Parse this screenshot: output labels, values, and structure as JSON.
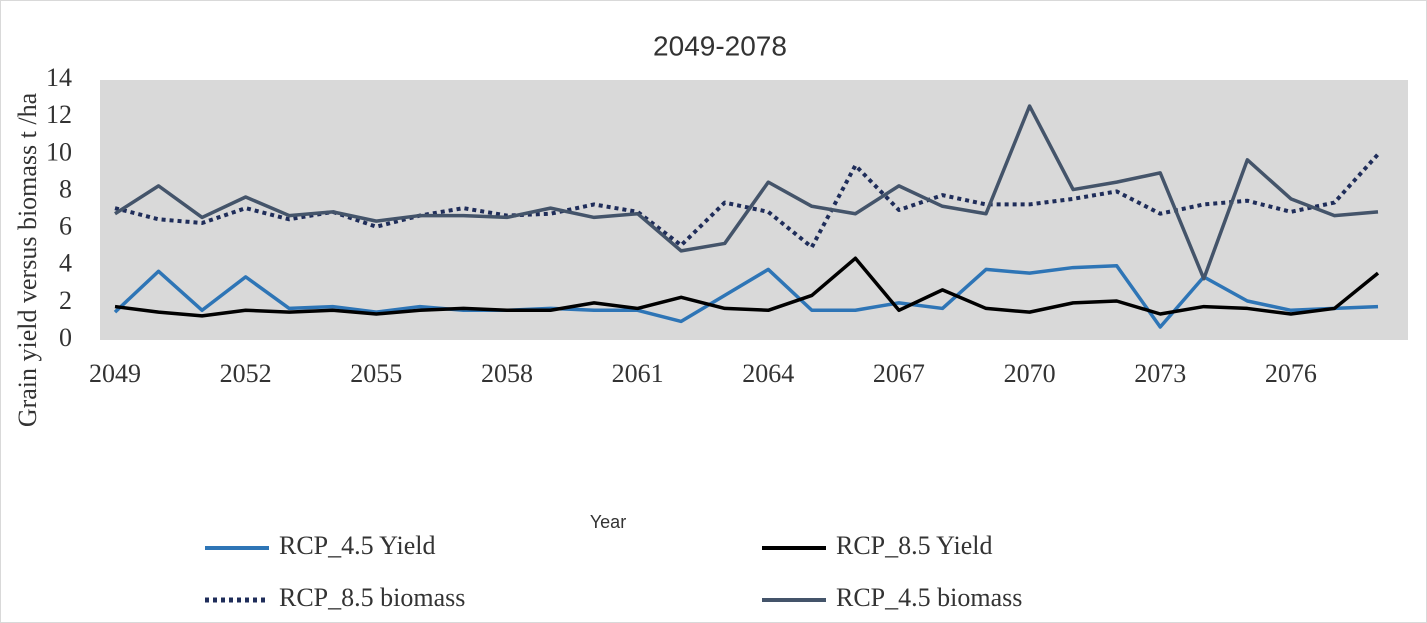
{
  "chart_data": {
    "type": "line",
    "title": "2049-2078",
    "xlabel": "Year",
    "ylabel": "Grain yield versus biomass t /ha",
    "x": [
      2049,
      2050,
      2051,
      2052,
      2053,
      2054,
      2055,
      2056,
      2057,
      2058,
      2059,
      2060,
      2061,
      2062,
      2063,
      2064,
      2065,
      2066,
      2067,
      2068,
      2069,
      2070,
      2071,
      2072,
      2073,
      2074,
      2075,
      2076,
      2077,
      2078
    ],
    "xlim": [
      2049,
      2078
    ],
    "xticks": [
      2049,
      2052,
      2055,
      2058,
      2061,
      2064,
      2067,
      2070,
      2073,
      2076
    ],
    "ylim": [
      0,
      14
    ],
    "yticks": [
      0,
      2,
      4,
      6,
      8,
      10,
      12,
      14
    ],
    "series": [
      {
        "name": "RCP_4.5 Yield",
        "color": "#2e75b6",
        "style": "solid",
        "values": [
          1.5,
          3.7,
          1.6,
          3.4,
          1.7,
          1.8,
          1.5,
          1.8,
          1.6,
          1.6,
          1.7,
          1.6,
          1.6,
          1.0,
          2.4,
          3.8,
          1.6,
          1.6,
          2.0,
          1.7,
          3.8,
          3.6,
          3.9,
          4.0,
          0.7,
          3.4,
          2.1,
          1.6,
          1.7,
          1.8
        ]
      },
      {
        "name": "RCP_8.5 Yield",
        "color": "#000000",
        "style": "solid",
        "values": [
          1.8,
          1.5,
          1.3,
          1.6,
          1.5,
          1.6,
          1.4,
          1.6,
          1.7,
          1.6,
          1.6,
          2.0,
          1.7,
          2.3,
          1.7,
          1.6,
          2.4,
          4.4,
          1.6,
          2.7,
          1.7,
          1.5,
          2.0,
          2.1,
          1.4,
          1.8,
          1.7,
          1.4,
          1.7,
          3.6
        ]
      },
      {
        "name": "RCP_8.5 biomass",
        "color": "#1f2d5a",
        "style": "dotted",
        "values": [
          7.1,
          6.5,
          6.3,
          7.1,
          6.5,
          6.9,
          6.1,
          6.7,
          7.1,
          6.7,
          6.8,
          7.3,
          6.9,
          5.1,
          7.4,
          6.9,
          5.0,
          9.4,
          7.0,
          7.8,
          7.3,
          7.3,
          7.6,
          8.0,
          6.8,
          7.3,
          7.5,
          6.9,
          7.4,
          10.0
        ]
      },
      {
        "name": "RCP_4.5 biomass",
        "color": "#44546a",
        "style": "solid",
        "values": [
          6.8,
          8.3,
          6.6,
          7.7,
          6.7,
          6.9,
          6.4,
          6.7,
          6.7,
          6.6,
          7.1,
          6.6,
          6.8,
          4.8,
          5.2,
          8.5,
          7.2,
          6.8,
          8.3,
          7.2,
          6.8,
          12.6,
          8.1,
          8.5,
          9.0,
          3.3,
          9.7,
          7.6,
          6.7,
          6.9
        ]
      }
    ]
  }
}
